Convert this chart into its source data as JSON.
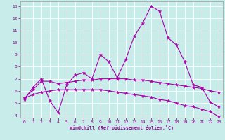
{
  "xlabel": "Windchill (Refroidissement éolien,°C)",
  "x": [
    0,
    1,
    2,
    3,
    4,
    5,
    6,
    7,
    8,
    9,
    10,
    11,
    12,
    13,
    14,
    15,
    16,
    17,
    18,
    19,
    20,
    21,
    22,
    23
  ],
  "line1": [
    5.3,
    6.3,
    7.0,
    5.2,
    4.2,
    6.5,
    7.3,
    7.5,
    7.0,
    9.0,
    8.4,
    7.1,
    8.6,
    10.5,
    11.6,
    13.0,
    12.6,
    10.4,
    9.8,
    8.4,
    6.5,
    6.3,
    5.1,
    4.7
  ],
  "line2": [
    5.4,
    6.1,
    6.8,
    6.8,
    6.6,
    6.7,
    6.8,
    6.9,
    6.9,
    7.0,
    7.0,
    7.0,
    7.0,
    6.9,
    6.9,
    6.8,
    6.7,
    6.6,
    6.5,
    6.4,
    6.3,
    6.2,
    6.0,
    5.9
  ],
  "line3": [
    5.4,
    5.7,
    5.9,
    6.0,
    6.1,
    6.1,
    6.1,
    6.1,
    6.1,
    6.1,
    6.0,
    5.9,
    5.8,
    5.7,
    5.6,
    5.5,
    5.3,
    5.2,
    5.0,
    4.8,
    4.7,
    4.5,
    4.3,
    3.9
  ],
  "color": "#aa00aa",
  "bg_color": "#c8ecea",
  "grid_color": "#b0dbd8",
  "ylim": [
    3.8,
    13.4
  ],
  "xlim": [
    -0.5,
    23.5
  ],
  "yticks": [
    4,
    5,
    6,
    7,
    8,
    9,
    10,
    11,
    12,
    13
  ],
  "xticks": [
    0,
    1,
    2,
    3,
    4,
    5,
    6,
    7,
    8,
    9,
    10,
    11,
    12,
    13,
    14,
    15,
    16,
    17,
    18,
    19,
    20,
    21,
    22,
    23
  ]
}
